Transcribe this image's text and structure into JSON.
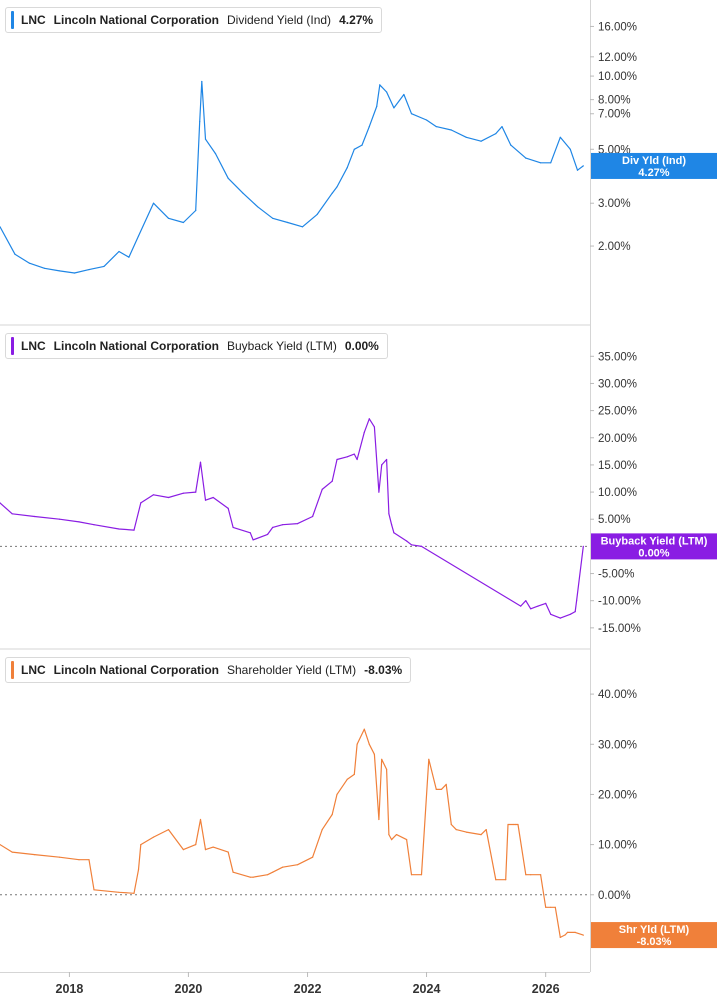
{
  "chart_data": [
    {
      "type": "line",
      "ticker": "LNC",
      "company": "Lincoln National Corporation",
      "metric": "Dividend Yield (Ind)",
      "current_value": "4.27%",
      "badge_label": "Div Yld (Ind)",
      "badge_value": "4.27%",
      "color": "#1f86e5",
      "y_scale": "log",
      "ylim": [
        1.2,
        18.0
      ],
      "y_ticks": [
        "16.00%",
        "12.00%",
        "10.00%",
        "8.00%",
        "7.00%",
        "5.00%",
        "3.00%",
        "2.00%"
      ],
      "y_tick_values": [
        16,
        12,
        10,
        8,
        7,
        5,
        3,
        2
      ],
      "series": [
        {
          "x": [
            "2016-11-01",
            "2017-02-01",
            "2017-05-01",
            "2017-08-01",
            "2017-11-01",
            "2018-02-01",
            "2018-05-01",
            "2018-08-01",
            "2018-11-01",
            "2019-01-01",
            "2019-03-01",
            "2019-06-01",
            "2019-09-01",
            "2019-12-01",
            "2020-02-15",
            "2020-03-10",
            "2020-03-23",
            "2020-04-15",
            "2020-06-15",
            "2020-09-01",
            "2020-12-01",
            "2021-03-01",
            "2021-06-01",
            "2021-09-01",
            "2021-12-01",
            "2022-03-01",
            "2022-06-01",
            "2022-07-01",
            "2022-09-01",
            "2022-10-15",
            "2022-12-01",
            "2023-01-15",
            "2023-03-01",
            "2023-03-20",
            "2023-05-01",
            "2023-06-15",
            "2023-08-15",
            "2023-10-01",
            "2024-01-01",
            "2024-03-01",
            "2024-06-01",
            "2024-09-01",
            "2024-12-01",
            "2025-03-01",
            "2025-04-08",
            "2025-06-01",
            "2025-09-01",
            "2025-12-01",
            "2026-02-01",
            "2026-04-01",
            "2026-06-01",
            "2026-07-15",
            "2026-08-20"
          ],
          "values": [
            2.4,
            1.85,
            1.7,
            1.62,
            1.58,
            1.55,
            1.6,
            1.65,
            1.9,
            1.8,
            2.2,
            3.0,
            2.6,
            2.5,
            2.8,
            6.5,
            9.5,
            5.5,
            4.8,
            3.8,
            3.3,
            2.9,
            2.6,
            2.5,
            2.4,
            2.7,
            3.3,
            3.5,
            4.2,
            5.0,
            5.2,
            6.2,
            7.5,
            9.2,
            8.6,
            7.4,
            8.4,
            7.0,
            6.6,
            6.2,
            6.0,
            5.6,
            5.4,
            5.8,
            6.2,
            5.2,
            4.6,
            4.4,
            4.4,
            5.6,
            5.0,
            4.1,
            4.27
          ]
        }
      ]
    },
    {
      "type": "line",
      "ticker": "LNC",
      "company": "Lincoln National Corporation",
      "metric": "Buyback Yield (LTM)",
      "current_value": "0.00%",
      "badge_label": "Buyback Yield (LTM)",
      "badge_value": "0.00%",
      "color": "#8a1de3",
      "ylim": [
        -16.5,
        38.0
      ],
      "y_ticks": [
        "35.00%",
        "30.00%",
        "25.00%",
        "20.00%",
        "15.00%",
        "10.00%",
        "5.00%",
        "-5.00%",
        "-10.00%",
        "-15.00%"
      ],
      "y_tick_values": [
        35,
        30,
        25,
        20,
        15,
        10,
        5,
        -5,
        -10,
        -15
      ],
      "zero_line": true,
      "series": [
        {
          "x": [
            "2016-11-01",
            "2017-01-15",
            "2017-06-01",
            "2017-11-01",
            "2018-03-01",
            "2018-06-01",
            "2018-11-01",
            "2019-02-01",
            "2019-03-15",
            "2019-06-01",
            "2019-09-01",
            "2019-12-01",
            "2020-02-15",
            "2020-03-15",
            "2020-04-15",
            "2020-06-01",
            "2020-09-01",
            "2020-10-01",
            "2021-01-15",
            "2021-02-01",
            "2021-05-01",
            "2021-06-01",
            "2021-08-01",
            "2021-11-01",
            "2022-02-01",
            "2022-04-01",
            "2022-06-01",
            "2022-07-01",
            "2022-09-01",
            "2022-10-15",
            "2022-11-01",
            "2022-12-15",
            "2023-01-15",
            "2023-02-15",
            "2023-03-15",
            "2023-04-01",
            "2023-05-01",
            "2023-05-15",
            "2023-06-01",
            "2023-06-15",
            "2023-09-01",
            "2023-10-01",
            "2023-12-01",
            "2025-08-01",
            "2025-09-01",
            "2025-10-01",
            "2025-11-15",
            "2026-01-01",
            "2026-02-01",
            "2026-04-01",
            "2026-06-01",
            "2026-07-01",
            "2026-07-10",
            "2026-08-20"
          ],
          "values": [
            8.0,
            6.0,
            5.5,
            5.0,
            4.5,
            4.0,
            3.2,
            3.0,
            8.0,
            9.5,
            9.0,
            9.8,
            10.0,
            15.5,
            8.5,
            9.0,
            7.0,
            3.5,
            2.5,
            1.2,
            2.2,
            3.5,
            4.0,
            4.2,
            5.5,
            10.5,
            12.0,
            16.0,
            16.5,
            17.0,
            16.0,
            21.0,
            23.5,
            22.0,
            10.0,
            15.0,
            16.0,
            6.0,
            4.0,
            2.5,
            1.0,
            0.3,
            0.0,
            -11.0,
            -10.0,
            -11.5,
            -11.0,
            -10.5,
            -12.5,
            -13.2,
            -12.5,
            -12.0,
            -10.0,
            0.0
          ]
        }
      ]
    },
    {
      "type": "line",
      "ticker": "LNC",
      "company": "Lincoln National Corporation",
      "metric": "Shareholder Yield (LTM)",
      "current_value": "-8.03%",
      "badge_label": "Shr Yld (LTM)",
      "badge_value": "-8.03%",
      "color": "#f0803a",
      "ylim": [
        -13.0,
        46.0
      ],
      "y_ticks": [
        "40.00%",
        "30.00%",
        "20.00%",
        "10.00%",
        "0.00%"
      ],
      "y_tick_values": [
        40,
        30,
        20,
        10,
        0
      ],
      "zero_line": true,
      "x_ticks": [
        "2018",
        "2020",
        "2022",
        "2024",
        "2026"
      ],
      "x_tick_values": [
        "2018-01-01",
        "2020-01-01",
        "2022-01-01",
        "2024-01-01",
        "2026-01-01"
      ],
      "series": [
        {
          "x": [
            "2016-11-01",
            "2017-01-15",
            "2017-06-01",
            "2017-11-01",
            "2018-03-01",
            "2018-05-01",
            "2018-06-01",
            "2018-11-01",
            "2019-02-01",
            "2019-03-01",
            "2019-03-15",
            "2019-06-01",
            "2019-09-01",
            "2019-12-01",
            "2020-02-15",
            "2020-03-15",
            "2020-04-15",
            "2020-06-01",
            "2020-09-01",
            "2020-10-01",
            "2021-01-15",
            "2021-02-01",
            "2021-05-01",
            "2021-06-01",
            "2021-08-01",
            "2021-11-01",
            "2022-02-01",
            "2022-04-01",
            "2022-06-01",
            "2022-07-01",
            "2022-09-01",
            "2022-10-15",
            "2022-11-01",
            "2022-12-15",
            "2023-01-15",
            "2023-02-15",
            "2023-03-15",
            "2023-04-01",
            "2023-05-01",
            "2023-05-15",
            "2023-06-01",
            "2023-07-01",
            "2023-09-01",
            "2023-10-01",
            "2023-12-01",
            "2024-01-15",
            "2024-03-01",
            "2024-04-01",
            "2024-05-01",
            "2024-06-01",
            "2024-07-01",
            "2024-09-01",
            "2024-12-01",
            "2025-01-01",
            "2025-03-01",
            "2025-05-01",
            "2025-05-15",
            "2025-06-15",
            "2025-07-01",
            "2025-07-15",
            "2025-09-01",
            "2025-10-01",
            "2025-12-01",
            "2026-01-01",
            "2026-02-01",
            "2026-03-01",
            "2026-04-01",
            "2026-05-01",
            "2026-05-15",
            "2026-07-01",
            "2026-08-20"
          ],
          "values": [
            10.0,
            8.5,
            8.0,
            7.5,
            7.0,
            7.0,
            1.0,
            0.5,
            0.3,
            5.0,
            10.0,
            11.5,
            13.0,
            9.0,
            10.0,
            15.0,
            9.0,
            9.5,
            8.5,
            4.5,
            3.5,
            3.5,
            4.0,
            4.5,
            5.5,
            6.0,
            7.5,
            13.0,
            16.0,
            20.0,
            23.0,
            24.0,
            30.0,
            33.0,
            30.0,
            28.0,
            15.0,
            27.0,
            25.0,
            12.0,
            11.0,
            12.0,
            11.0,
            4.0,
            4.0,
            27.0,
            21.0,
            21.0,
            22.0,
            14.0,
            13.0,
            12.5,
            12.0,
            13.0,
            3.0,
            3.0,
            14.0,
            14.0,
            14.0,
            14.0,
            4.0,
            4.0,
            4.0,
            -2.5,
            -2.5,
            -2.5,
            -8.5,
            -8.0,
            -7.5,
            -7.5,
            -8.03
          ]
        }
      ]
    }
  ]
}
